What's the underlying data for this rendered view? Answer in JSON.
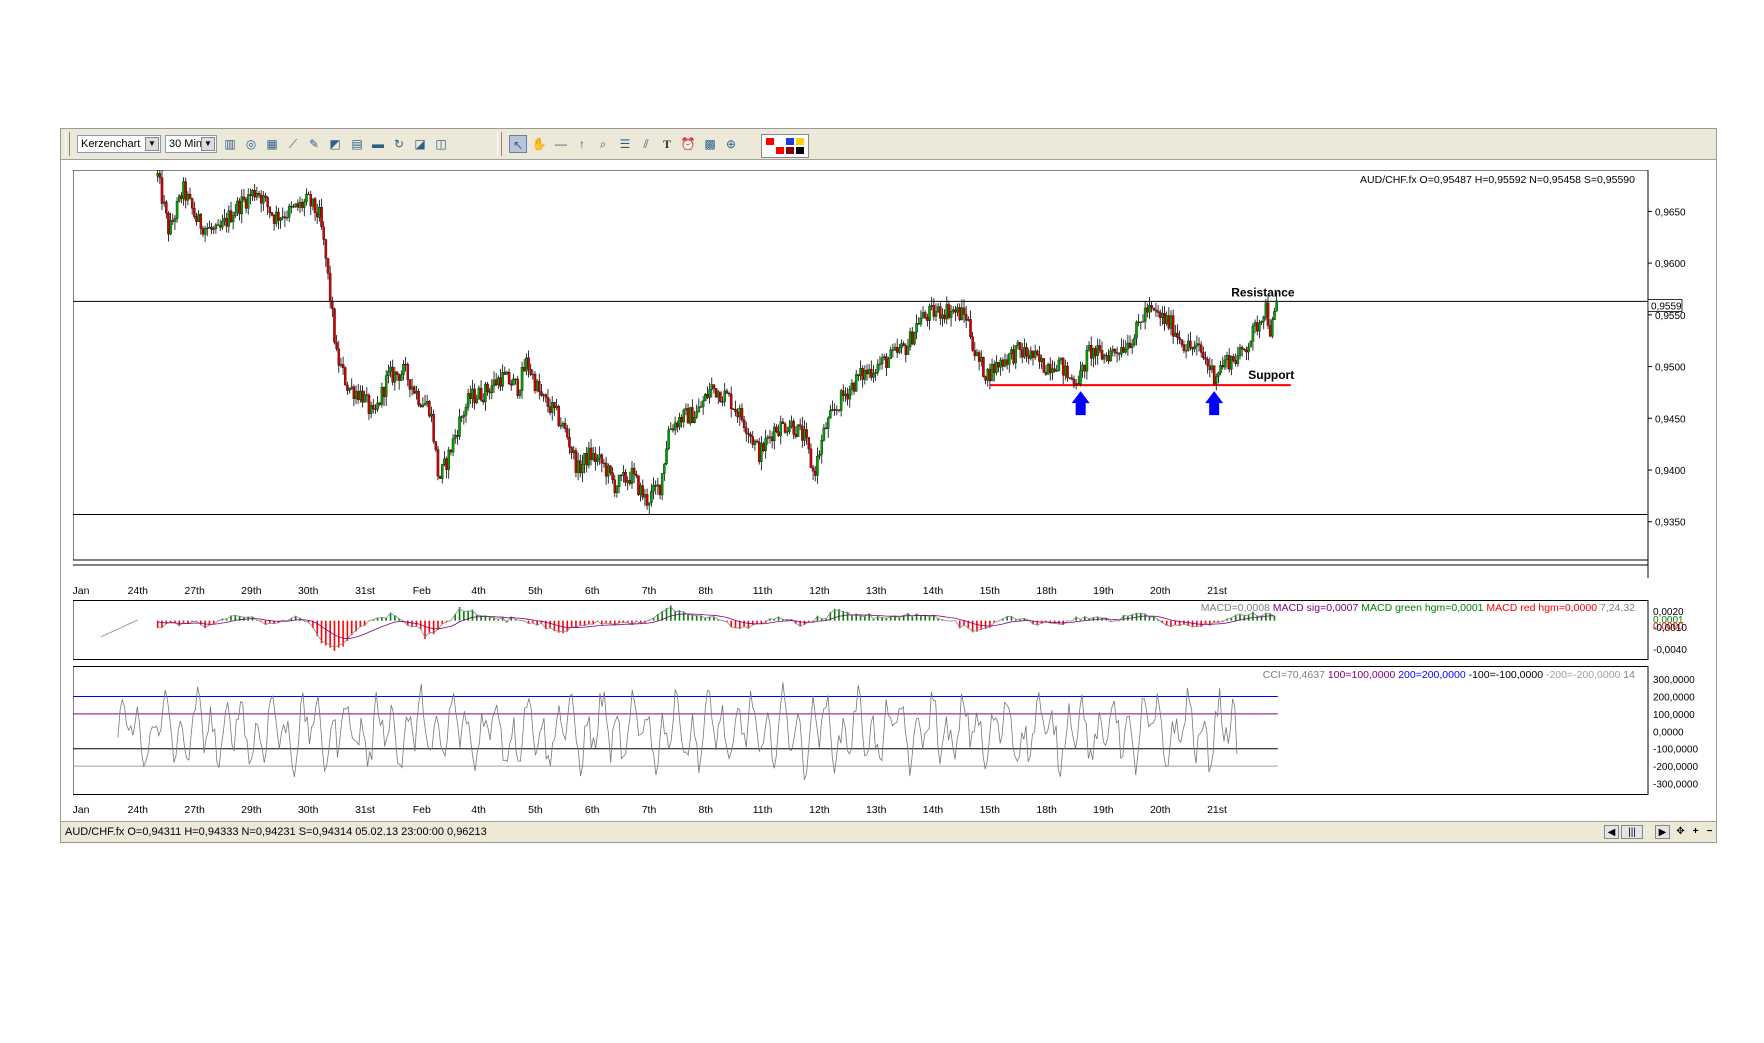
{
  "toolbar": {
    "chart_type": "Kerzenchart",
    "timeframe": "30 Min.",
    "icons": [
      "bar-chart-icon",
      "indicator-icon",
      "grid-icon",
      "line-chart-icon",
      "edit-chart-icon",
      "area-chart-icon",
      "document-icon",
      "print-icon",
      "refresh-icon",
      "template-icon",
      "save-template-icon"
    ],
    "draw_tools": [
      "cursor-icon",
      "hand-icon",
      "line-tool-icon",
      "arrow-tool-icon",
      "zoom-icon",
      "fibonacci-icon",
      "fan-icon",
      "text-tool-icon",
      "alarm-icon",
      "calculator-icon",
      "chart-export-icon"
    ],
    "colors": [
      "#ff0000",
      "#ffffff",
      "#1a3fd6",
      "#ffd200",
      "#ffffff",
      "#ff0000",
      "#8b0000",
      "#000000"
    ]
  },
  "chart_data": [
    {
      "type": "candlestick",
      "instrument": "AUD/CHF.fx",
      "info": "AUD/CHF.fx O=0,95487 H=0,95592 N=0,95458 S=0,95590",
      "last_price_label": "0,9559",
      "ylim": [
        0.9313,
        0.969
      ],
      "y_ticks": [
        0.935,
        0.94,
        0.945,
        0.95,
        0.955,
        0.96,
        0.965
      ],
      "y_tick_labels": [
        "0,9350",
        "0,9400",
        "0,9450",
        "0,9500",
        "0,9550",
        "0,9600",
        "0,9650"
      ],
      "x_labels": [
        "Jan",
        "24th",
        "27th",
        "29th",
        "30th",
        "31st",
        "Feb",
        "4th",
        "5th",
        "6th",
        "7th",
        "8th",
        "11th",
        "12th",
        "13th",
        "14th",
        "15th",
        "18th",
        "19th",
        "20th",
        "21st"
      ],
      "annotations": {
        "resistance_label": "Resistance",
        "support_label": "Support",
        "resistance_level": 0.9563,
        "support_level": 0.9482,
        "channel_bottom": 0.9357,
        "arrows": [
          {
            "x": 17.6,
            "direction": "up",
            "color": "#0000ff"
          },
          {
            "x": 19.95,
            "direction": "up",
            "color": "#0000ff"
          }
        ]
      },
      "price_path": [
        [
          1.35,
          0.9684
        ],
        [
          1.55,
          0.963
        ],
        [
          1.8,
          0.9671
        ],
        [
          2.05,
          0.964
        ],
        [
          2.4,
          0.9628
        ],
        [
          2.7,
          0.9652
        ],
        [
          3.1,
          0.9671
        ],
        [
          3.4,
          0.9645
        ],
        [
          3.7,
          0.965
        ],
        [
          4.0,
          0.966
        ],
        [
          4.2,
          0.9645
        ],
        [
          4.32,
          0.96
        ],
        [
          4.5,
          0.951
        ],
        [
          4.7,
          0.948
        ],
        [
          4.95,
          0.9473
        ],
        [
          5.15,
          0.945
        ],
        [
          5.4,
          0.949
        ],
        [
          5.7,
          0.9495
        ],
        [
          5.95,
          0.947
        ],
        [
          6.15,
          0.946
        ],
        [
          6.3,
          0.939
        ],
        [
          6.45,
          0.941
        ],
        [
          6.65,
          0.9445
        ],
        [
          6.85,
          0.947
        ],
        [
          7.1,
          0.9475
        ],
        [
          7.4,
          0.949
        ],
        [
          7.7,
          0.948
        ],
        [
          7.85,
          0.9505
        ],
        [
          8.1,
          0.947
        ],
        [
          8.35,
          0.9455
        ],
        [
          8.55,
          0.9435
        ],
        [
          8.75,
          0.94
        ],
        [
          8.95,
          0.9415
        ],
        [
          9.2,
          0.9405
        ],
        [
          9.4,
          0.9385
        ],
        [
          9.7,
          0.9395
        ],
        [
          9.95,
          0.937
        ],
        [
          10.2,
          0.9385
        ],
        [
          10.35,
          0.944
        ],
        [
          10.55,
          0.945
        ],
        [
          10.85,
          0.9455
        ],
        [
          11.1,
          0.948
        ],
        [
          11.4,
          0.947
        ],
        [
          11.7,
          0.9445
        ],
        [
          11.95,
          0.9415
        ],
        [
          12.2,
          0.944
        ],
        [
          12.5,
          0.9445
        ],
        [
          12.75,
          0.943
        ],
        [
          12.9,
          0.9395
        ],
        [
          13.1,
          0.944
        ],
        [
          13.4,
          0.947
        ],
        [
          13.7,
          0.949
        ],
        [
          14.0,
          0.95
        ],
        [
          14.3,
          0.951
        ],
        [
          14.55,
          0.952
        ],
        [
          14.75,
          0.9545
        ],
        [
          15.0,
          0.9552
        ],
        [
          15.3,
          0.9555
        ],
        [
          15.6,
          0.9548
        ],
        [
          15.75,
          0.951
        ],
        [
          15.95,
          0.9492
        ],
        [
          16.2,
          0.9505
        ],
        [
          16.5,
          0.9515
        ],
        [
          16.75,
          0.951
        ],
        [
          16.95,
          0.95
        ],
        [
          17.2,
          0.9505
        ],
        [
          17.4,
          0.9488
        ],
        [
          17.6,
          0.949
        ],
        [
          17.75,
          0.9515
        ],
        [
          18.0,
          0.951
        ],
        [
          18.3,
          0.9518
        ],
        [
          18.55,
          0.953
        ],
        [
          18.75,
          0.9555
        ],
        [
          19.0,
          0.9548
        ],
        [
          19.2,
          0.954
        ],
        [
          19.45,
          0.952
        ],
        [
          19.7,
          0.9515
        ],
        [
          19.95,
          0.9492
        ],
        [
          20.15,
          0.9505
        ],
        [
          20.4,
          0.951
        ],
        [
          20.6,
          0.9528
        ],
        [
          20.75,
          0.9545
        ],
        [
          20.85,
          0.956
        ],
        [
          20.95,
          0.9532
        ],
        [
          21.05,
          0.9559
        ]
      ]
    },
    {
      "type": "macd",
      "legend": [
        {
          "text": "MACD=0,0008",
          "color": "#808080"
        },
        {
          "text": "MACD sig=0,0007",
          "color": "#800080"
        },
        {
          "text": "MACD green hgm=0,0001",
          "color": "#008000"
        },
        {
          "text": "MACD red hgm=0,0000",
          "color": "#ff0000"
        },
        {
          "text": "7,24,32",
          "color": "#808080"
        }
      ],
      "ylim": [
        -0.0052,
        0.0028
      ],
      "y_tick_labels": [
        "0,0020",
        "0,0001",
        "0,0000",
        "-0,0010",
        "-0,0040"
      ],
      "y_tick_colors": [
        "#000000",
        "#008000",
        "#ff0000",
        "#000000",
        "#000000"
      ],
      "histogram_colors": {
        "positive": "#008000",
        "negative": "#ff0000"
      }
    },
    {
      "type": "cci",
      "legend": [
        {
          "text": "CCI=70,4637",
          "color": "#808080"
        },
        {
          "text": "100=100,0000",
          "color": "#800080"
        },
        {
          "text": "200=200,0000",
          "color": "#0000ff"
        },
        {
          "text": "-100=-100,0000",
          "color": "#000000"
        },
        {
          "text": "-200=-200,0000",
          "color": "#a0a0a0"
        },
        {
          "text": "14",
          "color": "#808080"
        }
      ],
      "ylim": [
        -360,
        375
      ],
      "levels": [
        {
          "value": 200,
          "color": "#0000ff"
        },
        {
          "value": 100,
          "color": "#800080"
        },
        {
          "value": -100,
          "color": "#000000"
        },
        {
          "value": -200,
          "color": "#a0a0a0"
        }
      ],
      "y_tick_values": [
        300,
        200,
        100,
        0,
        -100,
        -200,
        -300
      ],
      "y_tick_labels": [
        "300,0000",
        "200,0000",
        "100,0000",
        "0,0000",
        "-100,0000",
        "-200,0000",
        "-300,0000"
      ]
    }
  ],
  "status": {
    "text": "AUD/CHF.fx O=0,94311 H=0,94333 N=0,94231 S=0,94314   05.02.13 23:00:00 0,96213",
    "controls": [
      "scroll-left",
      "scroll-thumb",
      "scroll-right",
      "plus",
      "minus",
      "reset"
    ]
  }
}
